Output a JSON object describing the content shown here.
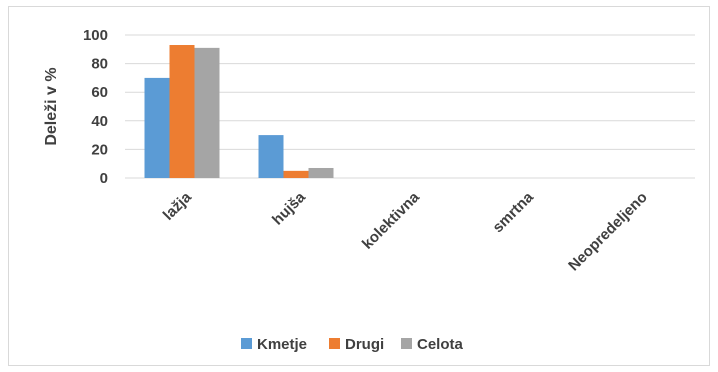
{
  "chart_data": {
    "type": "bar",
    "categories": [
      "lažja",
      "hujša",
      "kolektivna",
      "smrtna",
      "Neopredeljeno"
    ],
    "series": [
      {
        "name": "Kmetje",
        "values": [
          70,
          30,
          0,
          0,
          0
        ],
        "color": "#5b9bd5"
      },
      {
        "name": "Drugi",
        "values": [
          93,
          5,
          0,
          0,
          0
        ],
        "color": "#ed7d31"
      },
      {
        "name": "Celota",
        "values": [
          91,
          7,
          0,
          0,
          0
        ],
        "color": "#a5a5a5"
      }
    ],
    "ylabel": "Deleži v %",
    "xlabel": "",
    "ylim": [
      0,
      100
    ],
    "yticks": [
      0,
      20,
      40,
      60,
      80,
      100
    ],
    "grid": true,
    "legend_position": "bottom"
  }
}
